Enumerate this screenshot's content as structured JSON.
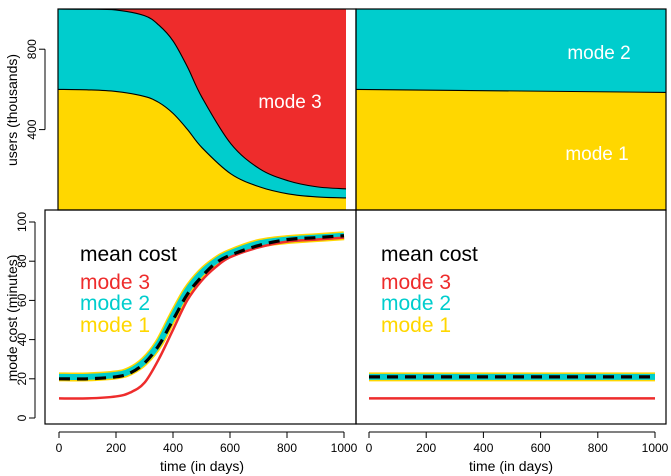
{
  "colors": {
    "mode1": "#FFD700",
    "mode2": "#00CDCD",
    "mode3": "#EE2C2C",
    "mean_cost": "#000000"
  },
  "chart_data": [
    {
      "type": "area",
      "panel": "top-left",
      "stacked": true,
      "ylabel": "users (thousands)",
      "ylim": [
        0,
        1000
      ],
      "y_ticks": [
        "400",
        "800"
      ],
      "y_tick_values": [
        400,
        800
      ],
      "xlim": [
        0,
        1000
      ],
      "x": [
        0,
        100,
        200,
        300,
        350,
        400,
        450,
        500,
        600,
        700,
        800,
        900,
        1000
      ],
      "series": [
        {
          "name": "mode 1",
          "values": [
            600,
            598,
            590,
            565,
            535,
            480,
            400,
            310,
            180,
            115,
            80,
            65,
            60
          ]
        },
        {
          "name": "mode 2",
          "values": [
            400,
            401,
            405,
            402,
            385,
            360,
            310,
            250,
            150,
            90,
            65,
            50,
            45
          ]
        },
        {
          "name": "mode 3",
          "values": [
            0,
            1,
            5,
            33,
            80,
            160,
            290,
            440,
            670,
            795,
            855,
            885,
            895
          ]
        }
      ],
      "annotations": [
        {
          "text": "mode 3",
          "series": "mode 3"
        }
      ]
    },
    {
      "type": "area",
      "panel": "top-right",
      "stacked": true,
      "ylim": [
        0,
        1000
      ],
      "xlim": [
        0,
        1000
      ],
      "x": [
        0,
        1000
      ],
      "series": [
        {
          "name": "mode 1",
          "values": [
            600,
            585
          ]
        },
        {
          "name": "mode 2",
          "values": [
            400,
            415
          ]
        },
        {
          "name": "mode 3",
          "values": [
            0,
            0
          ]
        }
      ],
      "annotations": [
        {
          "text": "mode 2",
          "series": "mode 2"
        },
        {
          "text": "mode 1",
          "series": "mode 1"
        }
      ]
    },
    {
      "type": "line",
      "panel": "bottom-left",
      "xlabel": "time (in days)",
      "ylabel": "mode cost (minutes)",
      "xlim": [
        0,
        1000
      ],
      "ylim": [
        0,
        100
      ],
      "x_ticks": [
        "0",
        "200",
        "400",
        "600",
        "800",
        "1000"
      ],
      "x_tick_values": [
        0,
        200,
        400,
        600,
        800,
        1000
      ],
      "y_ticks": [
        "0",
        "20",
        "40",
        "60",
        "80",
        "100"
      ],
      "y_tick_values": [
        0,
        20,
        40,
        60,
        80,
        100
      ],
      "x": [
        0,
        100,
        200,
        250,
        300,
        350,
        400,
        450,
        500,
        550,
        600,
        700,
        800,
        900,
        1000
      ],
      "series": [
        {
          "name": "mode 3",
          "values": [
            10,
            10,
            11,
            13,
            18,
            30,
            45,
            60,
            70,
            77,
            82,
            87,
            90,
            91,
            92
          ]
        },
        {
          "name": "mode 2",
          "values": [
            21,
            21,
            22,
            24,
            29,
            38,
            52,
            65,
            74,
            80,
            84,
            89,
            91,
            92,
            93
          ]
        },
        {
          "name": "mode 1",
          "values": [
            21,
            21,
            22,
            24,
            29,
            38,
            52,
            65,
            74,
            80,
            84,
            89,
            91,
            92,
            93
          ]
        },
        {
          "name": "mean cost",
          "values": [
            20,
            20,
            21,
            23,
            28,
            37,
            50,
            63,
            72,
            79,
            83,
            88,
            91,
            92,
            93
          ],
          "style": "dashed"
        }
      ],
      "legend": [
        "mean cost",
        "mode 3",
        "mode 2",
        "mode 1"
      ]
    },
    {
      "type": "line",
      "panel": "bottom-right",
      "xlabel": "time (in days)",
      "xlim": [
        0,
        1000
      ],
      "ylim": [
        0,
        100
      ],
      "x_ticks": [
        "0",
        "200",
        "400",
        "600",
        "800",
        "1000"
      ],
      "x_tick_values": [
        0,
        200,
        400,
        600,
        800,
        1000
      ],
      "x": [
        0,
        1000
      ],
      "series": [
        {
          "name": "mode 3",
          "values": [
            10,
            10
          ]
        },
        {
          "name": "mode 2",
          "values": [
            21,
            21
          ]
        },
        {
          "name": "mode 1",
          "values": [
            21,
            21
          ]
        },
        {
          "name": "mean cost",
          "values": [
            21,
            21
          ],
          "style": "dashed"
        }
      ],
      "legend": [
        "mean cost",
        "mode 3",
        "mode 2",
        "mode 1"
      ]
    }
  ]
}
